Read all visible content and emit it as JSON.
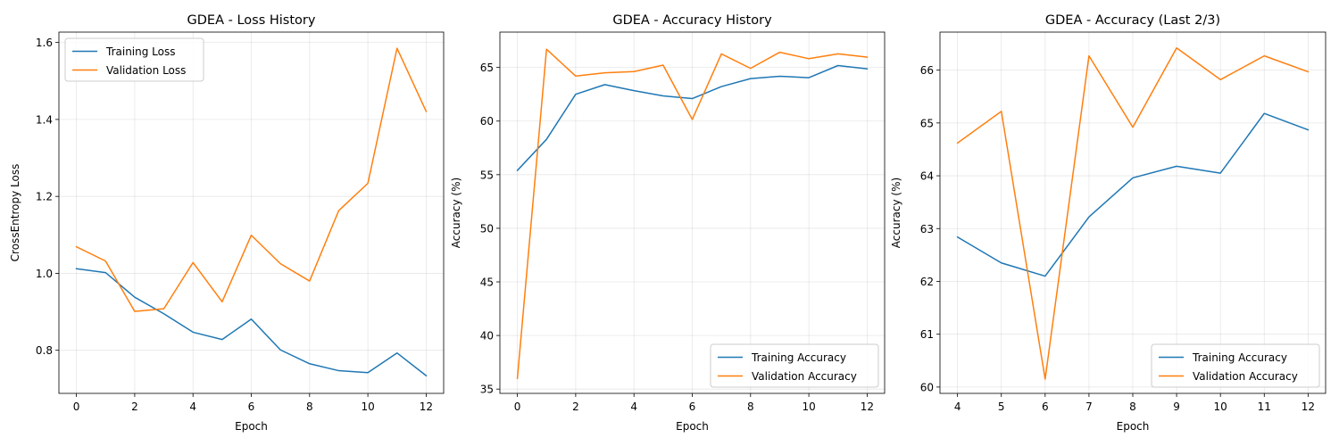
{
  "colors": {
    "training": "#1f77b4",
    "validation": "#ff7f0e",
    "grid": "#b0b0b0"
  },
  "chart_data": [
    {
      "type": "line",
      "title": "GDEA - Loss History",
      "xlabel": "Epoch",
      "ylabel": "CrossEntropy Loss",
      "xlim": [
        -0.6,
        12.6
      ],
      "ylim": [
        0.688,
        1.627
      ],
      "xticks": [
        0,
        2,
        4,
        6,
        8,
        10,
        12
      ],
      "xtick_labels": [
        "0",
        "2",
        "4",
        "6",
        "8",
        "10",
        "12"
      ],
      "yticks": [
        0.8,
        1.0,
        1.2,
        1.4,
        1.6
      ],
      "ytick_labels": [
        "0.8",
        "1.0",
        "1.2",
        "1.4",
        "1.6"
      ],
      "grid": true,
      "legend_position": "upper-left",
      "x": [
        0,
        1,
        2,
        3,
        4,
        5,
        6,
        7,
        8,
        9,
        10,
        11,
        12
      ],
      "series": [
        {
          "name": "Training Loss",
          "color": "training",
          "values": [
            1.012,
            1.002,
            0.938,
            0.895,
            0.847,
            0.828,
            0.881,
            0.801,
            0.765,
            0.747,
            0.742,
            0.793,
            0.734
          ]
        },
        {
          "name": "Validation Loss",
          "color": "validation",
          "values": [
            1.069,
            1.032,
            0.901,
            0.908,
            1.028,
            0.926,
            1.099,
            1.025,
            0.98,
            1.163,
            1.234,
            1.585,
            1.421
          ]
        }
      ]
    },
    {
      "type": "line",
      "title": "GDEA - Accuracy History",
      "xlabel": "Epoch",
      "ylabel": "Accuracy (%)",
      "xlim": [
        -0.6,
        12.6
      ],
      "ylim": [
        34.6,
        68.3
      ],
      "xticks": [
        0,
        2,
        4,
        6,
        8,
        10,
        12
      ],
      "xtick_labels": [
        "0",
        "2",
        "4",
        "6",
        "8",
        "10",
        "12"
      ],
      "yticks": [
        35,
        40,
        45,
        50,
        55,
        60,
        65
      ],
      "ytick_labels": [
        "35",
        "40",
        "45",
        "50",
        "55",
        "60",
        "65"
      ],
      "grid": true,
      "legend_position": "lower-right",
      "x": [
        0,
        1,
        2,
        3,
        4,
        5,
        6,
        7,
        8,
        9,
        10,
        11,
        12
      ],
      "series": [
        {
          "name": "Training Accuracy",
          "color": "training",
          "values": [
            55.4,
            58.3,
            62.5,
            63.4,
            62.84,
            62.35,
            62.1,
            63.22,
            63.96,
            64.18,
            64.05,
            65.18,
            64.87
          ]
        },
        {
          "name": "Validation Accuracy",
          "color": "validation",
          "values": [
            36.0,
            66.7,
            64.2,
            64.5,
            64.62,
            65.22,
            60.15,
            66.27,
            64.92,
            66.42,
            65.82,
            66.27,
            65.97
          ]
        }
      ]
    },
    {
      "type": "line",
      "title": "GDEA - Accuracy (Last 2/3)",
      "xlabel": "Epoch",
      "ylabel": "Accuracy (%)",
      "xlim": [
        3.6,
        12.4
      ],
      "ylim": [
        59.88,
        66.72
      ],
      "xticks": [
        4,
        5,
        6,
        7,
        8,
        9,
        10,
        11,
        12
      ],
      "xtick_labels": [
        "4",
        "5",
        "6",
        "7",
        "8",
        "9",
        "10",
        "11",
        "12"
      ],
      "yticks": [
        60,
        61,
        62,
        63,
        64,
        65,
        66
      ],
      "ytick_labels": [
        "60",
        "61",
        "62",
        "63",
        "64",
        "65",
        "66"
      ],
      "grid": true,
      "legend_position": "lower-right",
      "x": [
        4,
        5,
        6,
        7,
        8,
        9,
        10,
        11,
        12
      ],
      "series": [
        {
          "name": "Training Accuracy",
          "color": "training",
          "values": [
            62.84,
            62.35,
            62.1,
            63.22,
            63.96,
            64.18,
            64.05,
            65.18,
            64.87
          ]
        },
        {
          "name": "Validation Accuracy",
          "color": "validation",
          "values": [
            64.62,
            65.22,
            60.15,
            66.27,
            64.92,
            66.42,
            65.82,
            66.27,
            65.97
          ]
        }
      ]
    }
  ]
}
